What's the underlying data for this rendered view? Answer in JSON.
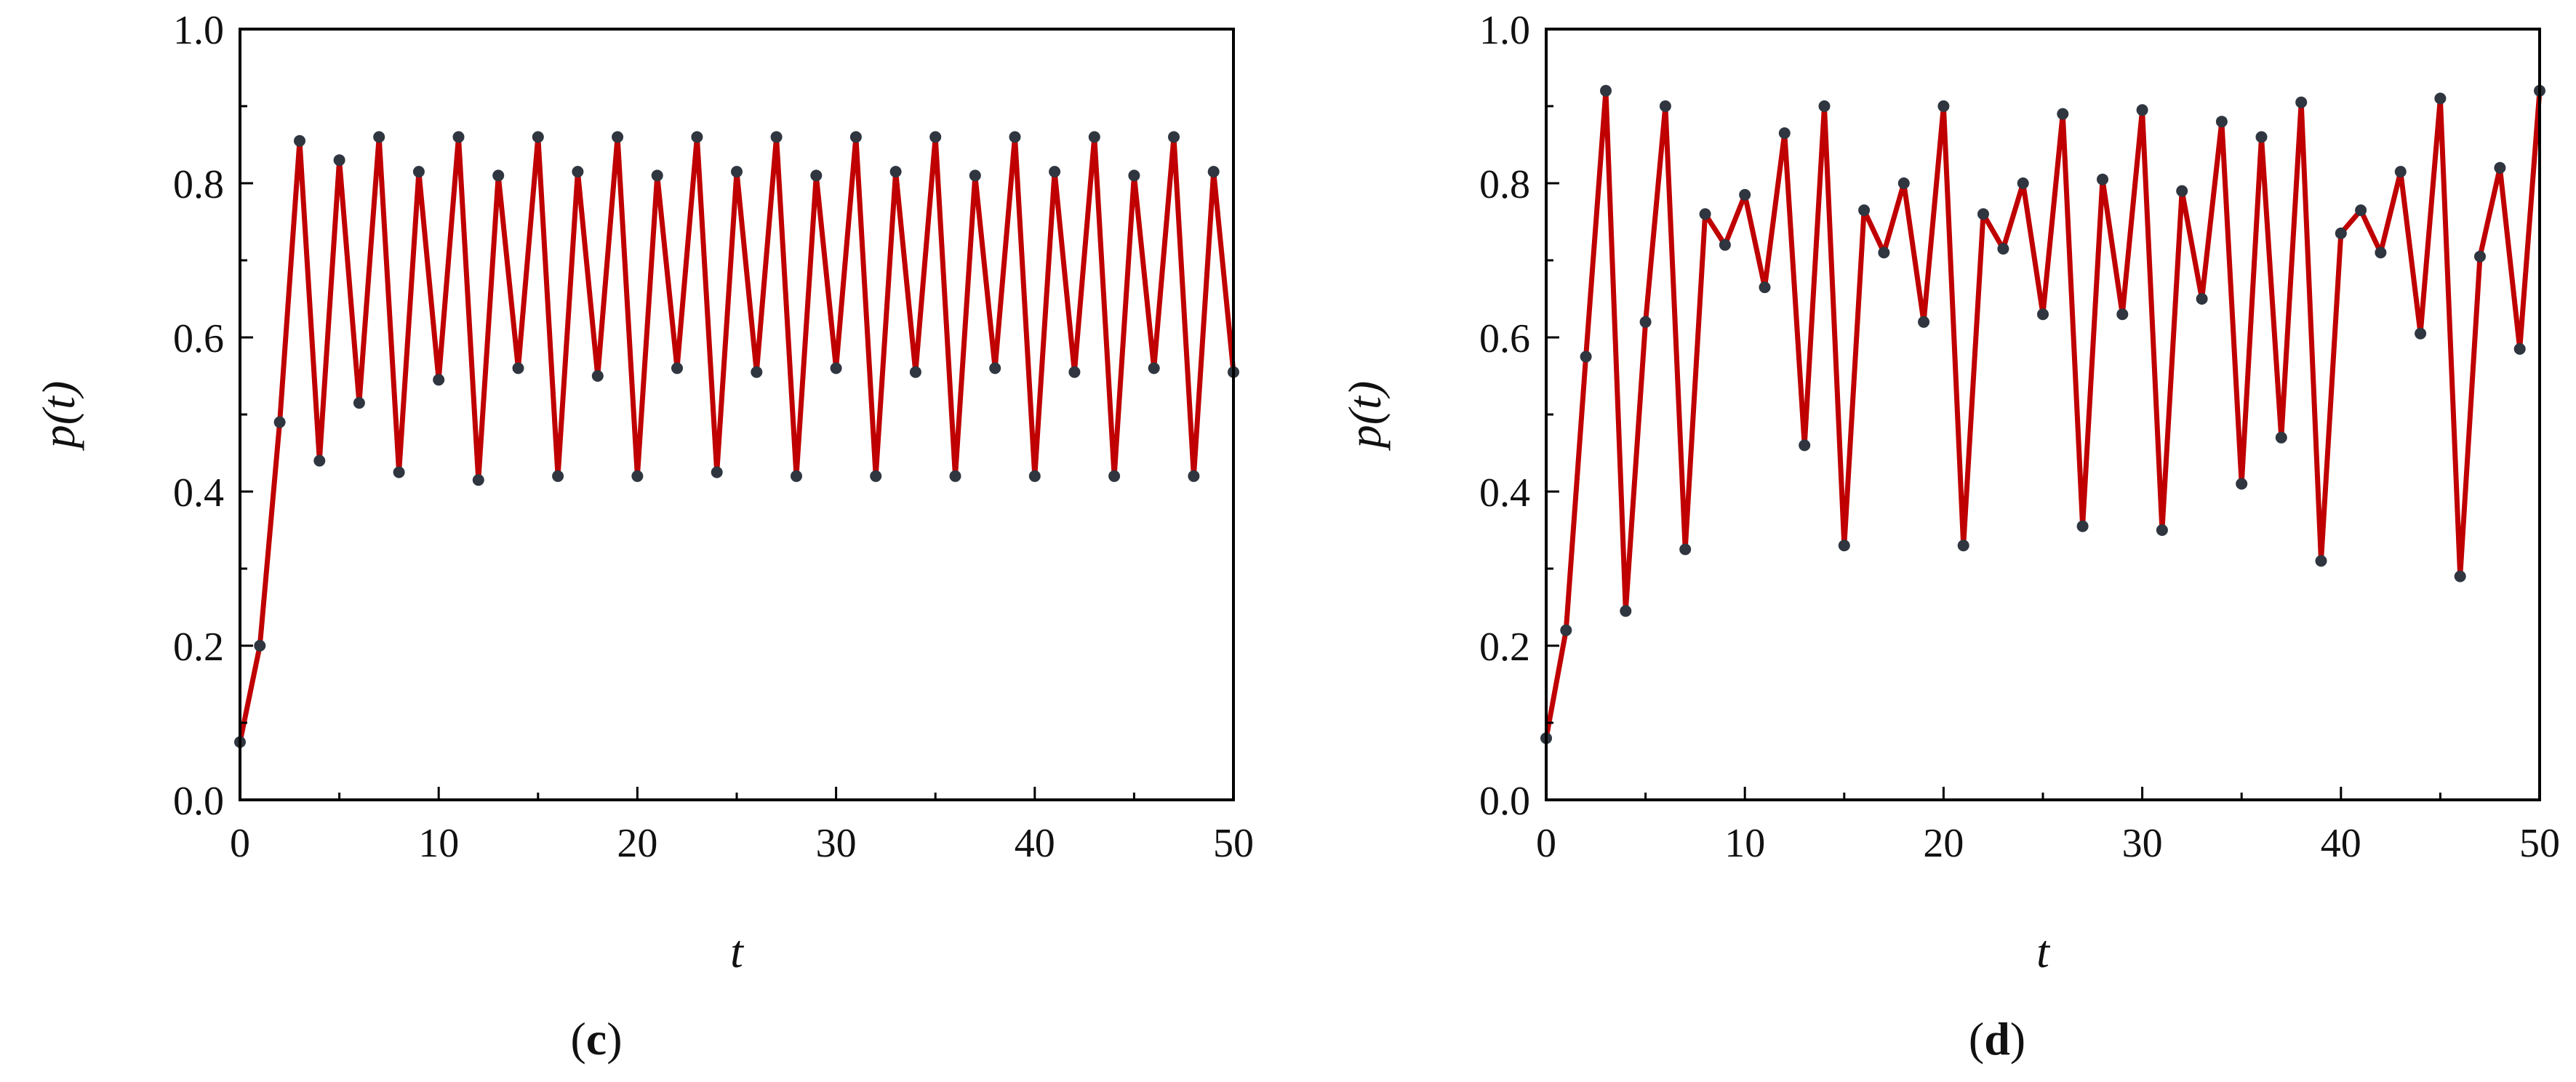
{
  "chart_data": [
    {
      "panel": "(c)",
      "caption": {
        "open": "(",
        "letter": "c",
        "close": ")"
      },
      "type": "line",
      "xlabel": "t",
      "ylabel": "p(t)",
      "ylabel_parts": {
        "pre": "p(",
        "var": "t",
        "post": ")"
      },
      "xlim": [
        0,
        50
      ],
      "ylim": [
        0.0,
        1.0
      ],
      "xticks": [
        0,
        10,
        20,
        30,
        40,
        50
      ],
      "yticks": [
        "0.0",
        "0.2",
        "0.4",
        "0.6",
        "0.8",
        "1.0"
      ],
      "grid": false,
      "line_color": "#c00000",
      "marker_color": "#2f3640",
      "x": [
        0,
        1,
        2,
        3,
        4,
        5,
        6,
        7,
        8,
        9,
        10,
        11,
        12,
        13,
        14,
        15,
        16,
        17,
        18,
        19,
        20,
        21,
        22,
        23,
        24,
        25,
        26,
        27,
        28,
        29,
        30,
        31,
        32,
        33,
        34,
        35,
        36,
        37,
        38,
        39,
        40,
        41,
        42,
        43,
        44,
        45,
        46,
        47,
        48,
        49,
        50
      ],
      "y": [
        0.075,
        0.2,
        0.49,
        0.855,
        0.44,
        0.83,
        0.515,
        0.86,
        0.425,
        0.815,
        0.545,
        0.86,
        0.415,
        0.81,
        0.56,
        0.86,
        0.42,
        0.815,
        0.55,
        0.86,
        0.42,
        0.81,
        0.56,
        0.86,
        0.425,
        0.815,
        0.555,
        0.86,
        0.42,
        0.81,
        0.56,
        0.86,
        0.42,
        0.815,
        0.555,
        0.86,
        0.42,
        0.81,
        0.56,
        0.86,
        0.42,
        0.815,
        0.555,
        0.86,
        0.42,
        0.81,
        0.56,
        0.86,
        0.42,
        0.815,
        0.555
      ]
    },
    {
      "panel": "(d)",
      "caption": {
        "open": "(",
        "letter": "d",
        "close": ")"
      },
      "type": "line",
      "xlabel": "t",
      "ylabel": "p(t)",
      "ylabel_parts": {
        "pre": "p(",
        "var": "t",
        "post": ")"
      },
      "xlim": [
        0,
        50
      ],
      "ylim": [
        0.0,
        1.0
      ],
      "xticks": [
        0,
        10,
        20,
        30,
        40,
        50
      ],
      "yticks": [
        "0.0",
        "0.2",
        "0.4",
        "0.6",
        "0.8",
        "1.0"
      ],
      "grid": false,
      "line_color": "#c00000",
      "marker_color": "#2f3640",
      "x": [
        0,
        1,
        2,
        3,
        4,
        5,
        6,
        7,
        8,
        9,
        10,
        11,
        12,
        13,
        14,
        15,
        16,
        17,
        18,
        19,
        20,
        21,
        22,
        23,
        24,
        25,
        26,
        27,
        28,
        29,
        30,
        31,
        32,
        33,
        34,
        35,
        36,
        37,
        38,
        39,
        40,
        41,
        42,
        43,
        44,
        45,
        46,
        47,
        48,
        49,
        50
      ],
      "y": [
        0.08,
        0.22,
        0.575,
        0.92,
        0.245,
        0.62,
        0.9,
        0.325,
        0.76,
        0.72,
        0.785,
        0.665,
        0.865,
        0.46,
        0.9,
        0.33,
        0.765,
        0.71,
        0.8,
        0.62,
        0.9,
        0.33,
        0.76,
        0.715,
        0.8,
        0.63,
        0.89,
        0.355,
        0.805,
        0.63,
        0.895,
        0.35,
        0.79,
        0.65,
        0.88,
        0.41,
        0.86,
        0.47,
        0.905,
        0.31,
        0.735,
        0.765,
        0.71,
        0.815,
        0.605,
        0.91,
        0.29,
        0.705,
        0.82,
        0.585,
        0.92
      ]
    }
  ]
}
